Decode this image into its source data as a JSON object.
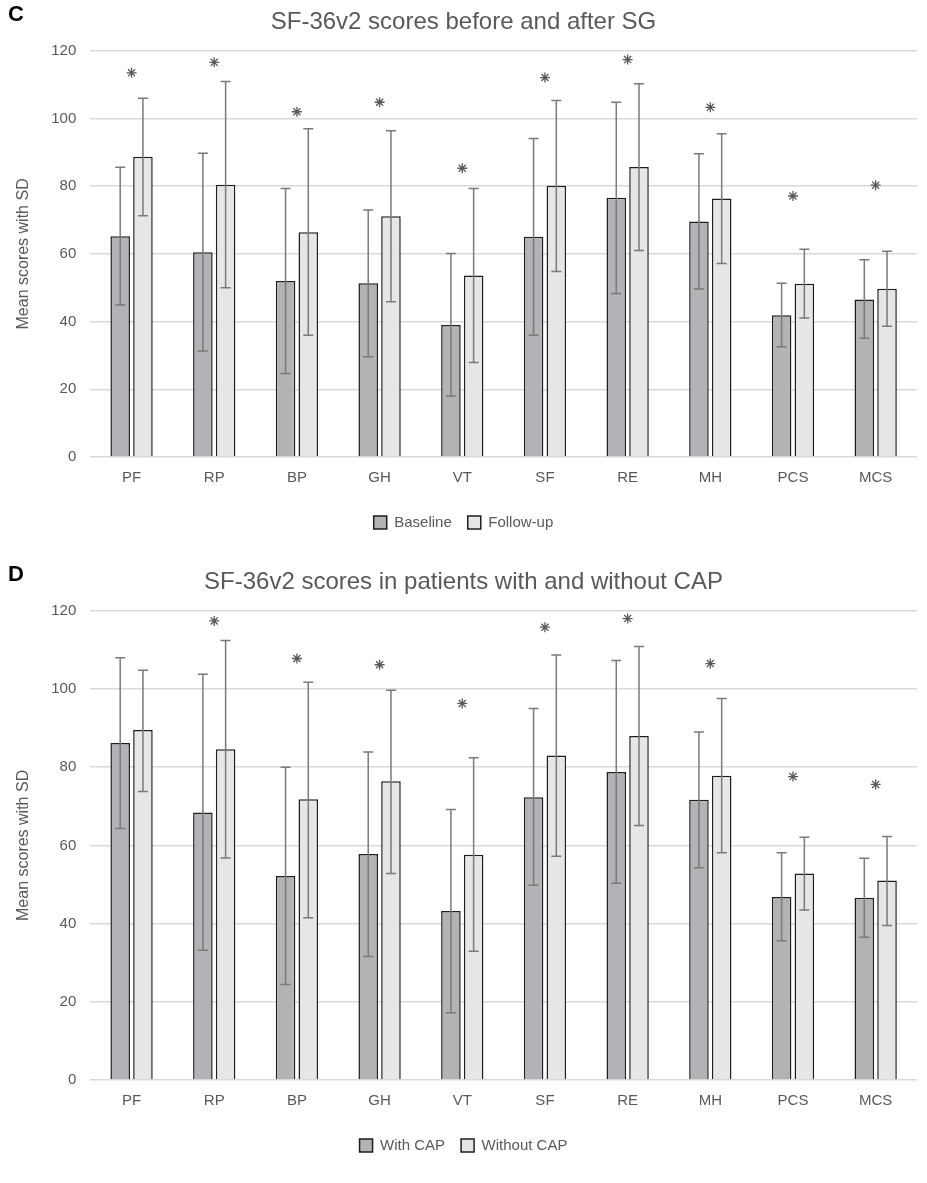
{
  "chart_data": [
    {
      "type": "bar",
      "title": "SF-36v2 scores before and after SG",
      "ylabel": "Mean scores with SD",
      "categories": [
        "PF",
        "RP",
        "BP",
        "GH",
        "VT",
        "SF",
        "RE",
        "MH",
        "PCS",
        "MCS"
      ],
      "series": [
        {
          "name": "Baseline",
          "color": "#b2b3b7",
          "values": [
            65.2,
            60.5,
            52.0,
            51.3,
            39.0,
            65.1,
            76.6,
            69.6,
            41.9,
            46.5
          ],
          "errors": [
            [
              44.9,
              85.6
            ],
            [
              31.3,
              89.7
            ],
            [
              24.7,
              79.3
            ],
            [
              29.6,
              73.0
            ],
            [
              18.0,
              60.1
            ],
            [
              36.0,
              94.1
            ],
            [
              48.3,
              104.8
            ],
            [
              49.6,
              89.6
            ],
            [
              32.6,
              51.3
            ],
            [
              35.1,
              58.3
            ]
          ]
        },
        {
          "name": "Follow-up",
          "color": "#e6e6e6",
          "values": [
            88.7,
            80.4,
            66.4,
            71.1,
            53.6,
            80.1,
            85.7,
            76.4,
            51.2,
            49.7
          ],
          "errors": [
            [
              71.3,
              106.0
            ],
            [
              50.0,
              110.9
            ],
            [
              36.0,
              97.0
            ],
            [
              45.9,
              96.4
            ],
            [
              27.9,
              79.3
            ],
            [
              54.8,
              105.3
            ],
            [
              61.0,
              110.3
            ],
            [
              57.2,
              95.5
            ],
            [
              41.1,
              61.4
            ],
            [
              38.6,
              60.8
            ]
          ]
        },
        {
          "type": "scatter",
          "marker": "cross",
          "color": "#595959",
          "x": [
            "PF",
            "RP",
            "BP",
            "GH",
            "VT",
            "SF",
            "RE",
            "MH",
            "PCS",
            "MCS"
          ],
          "values": [
            113.5,
            116.6,
            102,
            104.8,
            85.3,
            112.1,
            117.4,
            103.3,
            77.1,
            80.3
          ]
        }
      ],
      "ylim": [
        0,
        120
      ],
      "yticks": [
        0,
        20,
        40,
        60,
        80,
        100,
        120
      ],
      "grid": "y",
      "legend": "bottom",
      "annotations": [
        "C"
      ]
    },
    {
      "type": "bar",
      "title": "SF-36v2 scores in patients with and without CAP",
      "ylabel": "Mean scores with SD",
      "categories": [
        "PF",
        "RP",
        "BP",
        "GH",
        "VT",
        "SF",
        "RE",
        "MH",
        "PCS",
        "MCS"
      ],
      "series": [
        {
          "name": "With CAP",
          "color": "#b2b3b7",
          "values": [
            86.2,
            68.4,
            52.2,
            57.8,
            43.2,
            72.3,
            78.8,
            71.7,
            46.8,
            46.6
          ],
          "errors": [
            [
              64.3,
              108.0
            ],
            [
              33.2,
              103.8
            ],
            [
              24.4,
              80.0
            ],
            [
              31.6,
              83.9
            ],
            [
              17.2,
              69.2
            ],
            [
              49.8,
              95.0
            ],
            [
              50.3,
              107.3
            ],
            [
              54.3,
              89.0
            ],
            [
              35.6,
              58.1
            ],
            [
              36.5,
              56.7
            ]
          ]
        },
        {
          "name": "Without CAP",
          "color": "#e6e6e6",
          "values": [
            89.5,
            84.6,
            71.8,
            76.4,
            57.6,
            83.0,
            88.0,
            77.8,
            52.8,
            51.0
          ],
          "errors": [
            [
              73.8,
              104.8
            ],
            [
              56.8,
              112.4
            ],
            [
              41.5,
              101.7
            ],
            [
              52.8,
              99.7
            ],
            [
              32.9,
              82.4
            ],
            [
              57.2,
              108.7
            ],
            [
              65.1,
              110.9
            ],
            [
              58.1,
              97.6
            ],
            [
              43.5,
              62.1
            ],
            [
              39.5,
              62.3
            ]
          ]
        },
        {
          "type": "scatter",
          "marker": "cross",
          "color": "#595959",
          "x": [
            "RP",
            "BP",
            "GH",
            "VT",
            "SF",
            "RE",
            "MH",
            "PCS",
            "MCS"
          ],
          "values": [
            117.4,
            107.8,
            106.2,
            96.3,
            115.8,
            118.0,
            106.5,
            77.6,
            75.6
          ]
        }
      ],
      "ylim": [
        0,
        120
      ],
      "yticks": [
        0,
        20,
        40,
        60,
        80,
        100,
        120
      ],
      "grid": "y",
      "legend": "bottom",
      "annotations": [
        "D"
      ]
    }
  ]
}
